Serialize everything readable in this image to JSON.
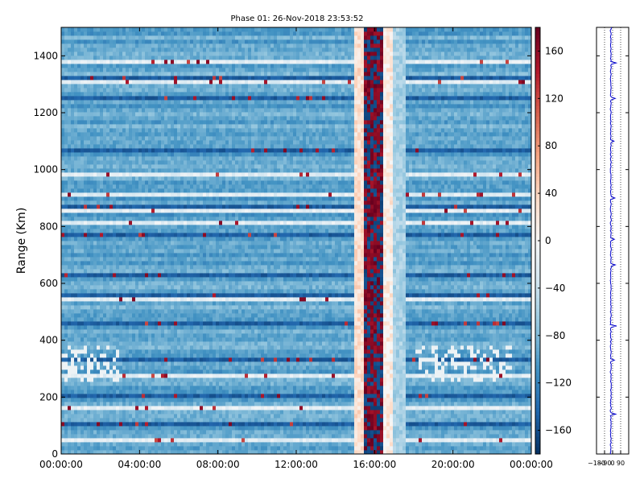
{
  "chart_data": [
    {
      "type": "heatmap",
      "title": "Phase 01: 26-Nov-2018 23:53:52",
      "ylabel": "Range (Km)",
      "xlabel": "",
      "x_ticks": [
        "00:00:00",
        "04:00:00",
        "08:00:00",
        "12:00:00",
        "16:00:00",
        "20:00:00",
        "00:00:00"
      ],
      "x_range_hours": [
        0,
        24
      ],
      "y_ticks": [
        0,
        200,
        400,
        600,
        800,
        1000,
        1200,
        1400
      ],
      "ylim": [
        0,
        1500
      ],
      "colormap": "RdBu_r",
      "colorbar": {
        "ticks": [
          -160,
          -120,
          -80,
          -40,
          0,
          40,
          80,
          120,
          160
        ],
        "range": [
          -180,
          180
        ]
      },
      "features": {
        "background_phase": -95,
        "vertical_band_hours": [
          15.0,
          17.0
        ],
        "vertical_band_core_hours": [
          15.5,
          16.4
        ],
        "bright_range_rows_km": [
          40,
          160,
          268,
          455,
          540,
          800,
          855,
          905,
          982,
          1305,
          1370
        ],
        "dark_range_rows_km": [
          100,
          195,
          330,
          455,
          555,
          620,
          760,
          870,
          1055,
          1245,
          1310
        ]
      },
      "grid": false
    },
    {
      "type": "line",
      "title": "",
      "xlabel": "",
      "ylabel": "",
      "x_tick_labels": [
        "−180",
        "−90",
        "0",
        "90"
      ],
      "xlim": [
        -180,
        180
      ],
      "ylim": [
        0,
        1500
      ],
      "grid": "vertical dotted",
      "series_color": "#0000cc",
      "profile_baseline": -20,
      "spikes": [
        {
          "range_km": 1375,
          "value": 40
        },
        {
          "range_km": 1250,
          "value": 30
        },
        {
          "range_km": 900,
          "value": 25
        },
        {
          "range_km": 755,
          "value": 20
        },
        {
          "range_km": 665,
          "value": 30
        },
        {
          "range_km": 450,
          "value": 45
        },
        {
          "range_km": 330,
          "value": 20
        },
        {
          "range_km": 140,
          "value": 35
        },
        {
          "range_km": 1100,
          "value": 15
        }
      ]
    }
  ]
}
